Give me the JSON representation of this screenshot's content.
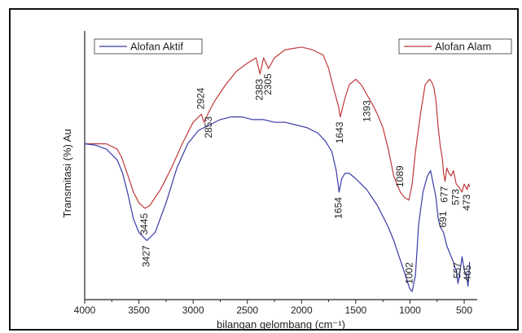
{
  "chart_data": {
    "type": "line",
    "title": "",
    "xlabel": "bilangan gelombang (cm⁻¹)",
    "ylabel": "Transmitasi (%) Au",
    "xlim": [
      4000,
      380
    ],
    "x_reversed": true,
    "ylim": [
      0,
      1
    ],
    "y_ticks_labeled": false,
    "xticks": [
      4000,
      3500,
      3000,
      2500,
      2000,
      1500,
      1000,
      500
    ],
    "grid": false,
    "legend": [
      {
        "name": "Alofan Aktif",
        "color": "#3a3aa8",
        "placement": "top-left"
      },
      {
        "name": "Alofan Alam",
        "color": "#c0393b",
        "placement": "top-right"
      }
    ],
    "series": [
      {
        "name": "Alofan Alam",
        "color": "#c0393b",
        "x": [
          4000,
          3800,
          3700,
          3660,
          3600,
          3550,
          3500,
          3445,
          3400,
          3300,
          3200,
          3100,
          3000,
          2924,
          2900,
          2853,
          2800,
          2700,
          2600,
          2500,
          2420,
          2383,
          2350,
          2305,
          2250,
          2150,
          2000,
          1900,
          1800,
          1750,
          1700,
          1660,
          1643,
          1600,
          1560,
          1500,
          1450,
          1393,
          1350,
          1300,
          1250,
          1200,
          1150,
          1089,
          1050,
          1010,
          980,
          950,
          900,
          860,
          820,
          800,
          780,
          760,
          740,
          720,
          700,
          690,
          677,
          660,
          640,
          620,
          600,
          573,
          550,
          520,
          500,
          473,
          460,
          450
        ],
        "y": [
          0.58,
          0.58,
          0.56,
          0.53,
          0.46,
          0.4,
          0.36,
          0.34,
          0.35,
          0.41,
          0.49,
          0.58,
          0.66,
          0.69,
          0.66,
          0.7,
          0.74,
          0.8,
          0.85,
          0.88,
          0.9,
          0.84,
          0.9,
          0.86,
          0.9,
          0.93,
          0.94,
          0.93,
          0.91,
          0.86,
          0.78,
          0.72,
          0.68,
          0.75,
          0.8,
          0.82,
          0.8,
          0.76,
          0.73,
          0.69,
          0.64,
          0.56,
          0.46,
          0.4,
          0.38,
          0.37,
          0.43,
          0.55,
          0.7,
          0.8,
          0.82,
          0.81,
          0.79,
          0.74,
          0.64,
          0.57,
          0.52,
          0.47,
          0.44,
          0.49,
          0.47,
          0.46,
          0.48,
          0.43,
          0.42,
          0.4,
          0.43,
          0.41,
          0.43,
          0.42
        ]
      },
      {
        "name": "Alofan Aktif",
        "color": "#3a3aa8",
        "x": [
          4000,
          3900,
          3800,
          3750,
          3700,
          3650,
          3600,
          3550,
          3500,
          3427,
          3350,
          3250,
          3150,
          3050,
          2950,
          2850,
          2750,
          2650,
          2550,
          2450,
          2350,
          2250,
          2150,
          2050,
          1950,
          1850,
          1780,
          1720,
          1680,
          1654,
          1630,
          1600,
          1560,
          1500,
          1450,
          1400,
          1300,
          1200,
          1150,
          1100,
          1050,
          1002,
          980,
          950,
          920,
          880,
          840,
          810,
          790,
          760,
          740,
          720,
          691,
          660,
          630,
          600,
          570,
          557,
          540,
          520,
          500,
          480,
          465,
          450
        ],
        "y": [
          0.58,
          0.575,
          0.56,
          0.54,
          0.52,
          0.47,
          0.39,
          0.3,
          0.25,
          0.22,
          0.25,
          0.36,
          0.49,
          0.58,
          0.63,
          0.65,
          0.67,
          0.68,
          0.68,
          0.67,
          0.67,
          0.66,
          0.66,
          0.65,
          0.64,
          0.62,
          0.59,
          0.55,
          0.48,
          0.4,
          0.45,
          0.47,
          0.47,
          0.45,
          0.43,
          0.41,
          0.35,
          0.27,
          0.22,
          0.16,
          0.1,
          0.04,
          0.03,
          0.09,
          0.28,
          0.4,
          0.46,
          0.48,
          0.44,
          0.38,
          0.3,
          0.27,
          0.25,
          0.2,
          0.17,
          0.14,
          0.1,
          0.06,
          0.1,
          0.16,
          0.11,
          0.09,
          0.05,
          0.14
        ]
      }
    ],
    "annotations": [
      {
        "text": "3445",
        "x": 3445,
        "y": 0.34,
        "series": "Alofan Alam",
        "side": "below"
      },
      {
        "text": "2924",
        "x": 2924,
        "y": 0.69,
        "series": "Alofan Alam",
        "side": "above"
      },
      {
        "text": "2853",
        "x": 2853,
        "y": 0.7,
        "series": "Alofan Alam",
        "side": "below"
      },
      {
        "text": "2383",
        "x": 2383,
        "y": 0.84,
        "series": "Alofan Alam",
        "side": "below"
      },
      {
        "text": "2305",
        "x": 2305,
        "y": 0.86,
        "series": "Alofan Alam",
        "side": "below"
      },
      {
        "text": "1643",
        "x": 1643,
        "y": 0.68,
        "series": "Alofan Alam",
        "side": "below"
      },
      {
        "text": "1393",
        "x": 1393,
        "y": 0.76,
        "series": "Alofan Alam",
        "side": "below"
      },
      {
        "text": "1089",
        "x": 1089,
        "y": 0.4,
        "series": "Alofan Alam",
        "side": "above"
      },
      {
        "text": "677",
        "x": 677,
        "y": 0.44,
        "series": "Alofan Alam",
        "side": "below"
      },
      {
        "text": "573",
        "x": 573,
        "y": 0.43,
        "series": "Alofan Alam",
        "side": "below"
      },
      {
        "text": "473",
        "x": 473,
        "y": 0.41,
        "series": "Alofan Alam",
        "side": "below"
      },
      {
        "text": "3427",
        "x": 3427,
        "y": 0.22,
        "series": "Alofan Aktif",
        "side": "below"
      },
      {
        "text": "1654",
        "x": 1654,
        "y": 0.4,
        "series": "Alofan Aktif",
        "side": "below"
      },
      {
        "text": "1002",
        "x": 1002,
        "y": 0.04,
        "series": "Alofan Aktif",
        "side": "above"
      },
      {
        "text": "691",
        "x": 691,
        "y": 0.25,
        "series": "Alofan Aktif",
        "side": "above"
      },
      {
        "text": "557",
        "x": 557,
        "y": 0.06,
        "series": "Alofan Aktif",
        "side": "above"
      },
      {
        "text": "465",
        "x": 465,
        "y": 0.05,
        "series": "Alofan Aktif",
        "side": "above"
      }
    ]
  }
}
